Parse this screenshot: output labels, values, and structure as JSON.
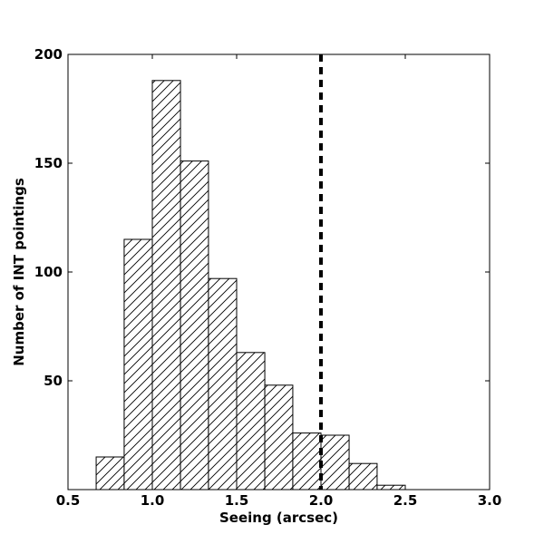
{
  "chart_data": {
    "type": "bar",
    "subtype": "histogram",
    "title": "",
    "xlabel": "Seeing (arcsec)",
    "ylabel": "Number of INT pointings",
    "xlim": [
      0.5,
      3.0
    ],
    "ylim": [
      0,
      200
    ],
    "xticks": [
      0.5,
      1.0,
      1.5,
      2.0,
      2.5,
      3.0
    ],
    "xtick_labels": [
      "0.5",
      "1.0",
      "1.5",
      "2.0",
      "2.5",
      "3.0"
    ],
    "yticks": [
      50,
      100,
      150,
      200
    ],
    "ytick_labels": [
      "50",
      "100",
      "150",
      "200"
    ],
    "bin_edges": [
      0.667,
      0.833,
      1.0,
      1.167,
      1.333,
      1.5,
      1.667,
      1.833,
      2.0,
      2.167,
      2.333,
      2.5,
      2.667,
      2.833
    ],
    "values": [
      15,
      115,
      188,
      151,
      97,
      63,
      48,
      26,
      25,
      12,
      2,
      0,
      0
    ],
    "bar_fill": "#ffffff",
    "bar_edge": "#000000",
    "hatch": "diagonal",
    "threshold_line": {
      "x": 2.0,
      "style": "dashed",
      "color": "#000000"
    },
    "grid": false,
    "legend": "none"
  }
}
